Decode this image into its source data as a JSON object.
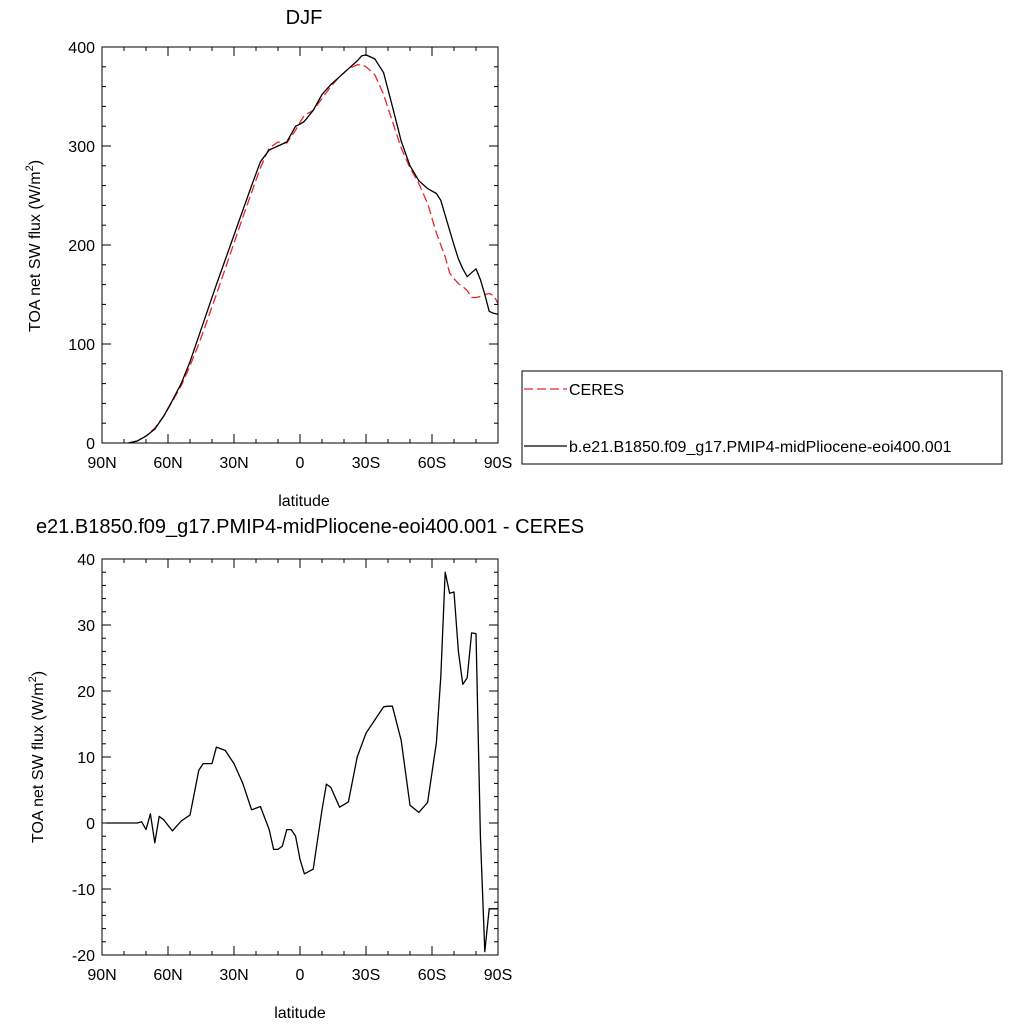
{
  "chart_data": [
    {
      "type": "line",
      "title": "DJF",
      "xlabel": "latitude",
      "ylabel": "TOA net SW flux (W/m",
      "ylabel_sup": "2",
      "ylabel_tail": ")",
      "xlim": [
        90,
        -90
      ],
      "ylim": [
        0,
        400
      ],
      "xticks": [
        {
          "v": 90,
          "label": "90N"
        },
        {
          "v": 60,
          "label": "60N"
        },
        {
          "v": 30,
          "label": "30N"
        },
        {
          "v": 0,
          "label": "0"
        },
        {
          "v": -30,
          "label": "30S"
        },
        {
          "v": -60,
          "label": "60S"
        },
        {
          "v": -90,
          "label": "90S"
        }
      ],
      "yticks": [
        0,
        100,
        200,
        300,
        400
      ],
      "grid": false,
      "legend_position": "right",
      "series": [
        {
          "name": "CERES",
          "color": "#e8262b",
          "dash": "dashed",
          "x": [
            78,
            74,
            70,
            66,
            62,
            58,
            54,
            50,
            46,
            42,
            38,
            34,
            30,
            26,
            22,
            18,
            14,
            10,
            6,
            2,
            0,
            -2,
            -6,
            -10,
            -14,
            -18,
            -22,
            -26,
            -28,
            -30,
            -34,
            -38,
            -42,
            -46,
            -50,
            -54,
            -58,
            -62,
            -66,
            -68,
            -70,
            -72,
            -74,
            -76,
            -78,
            -80,
            -82,
            -84,
            -86,
            -88,
            -90
          ],
          "y": [
            0,
            2,
            7,
            15,
            27,
            42,
            58,
            78,
            100,
            125,
            150,
            176,
            202,
            228,
            253,
            278,
            298,
            304,
            303,
            316,
            324,
            331,
            336,
            348,
            360,
            370,
            378,
            382,
            382,
            380,
            372,
            352,
            325,
            298,
            278,
            262,
            242,
            212,
            188,
            172,
            166,
            161,
            158,
            154,
            147,
            147,
            148,
            150,
            151,
            149,
            141
          ]
        },
        {
          "name": "b.e21.B1850.f09_g17.PMIP4-midPliocene-eoi400.001",
          "color": "#000000",
          "dash": "solid",
          "x": [
            78,
            74,
            70,
            66,
            62,
            58,
            54,
            50,
            46,
            42,
            38,
            34,
            30,
            26,
            22,
            18,
            14,
            10,
            6,
            2,
            0,
            -2,
            -6,
            -10,
            -14,
            -18,
            -22,
            -26,
            -28,
            -30,
            -34,
            -38,
            -42,
            -46,
            -50,
            -54,
            -58,
            -62,
            -64,
            -66,
            -68,
            -70,
            -72,
            -74,
            -76,
            -78,
            -80,
            -82,
            -84,
            -86,
            -88,
            -90
          ],
          "y": [
            0,
            2,
            7,
            14,
            27,
            43,
            60,
            82,
            108,
            134,
            160,
            185,
            210,
            235,
            260,
            284,
            296,
            300,
            304,
            320,
            322,
            325,
            336,
            352,
            362,
            370,
            378,
            386,
            391,
            392,
            388,
            374,
            340,
            305,
            280,
            265,
            257,
            252,
            245,
            230,
            215,
            200,
            186,
            176,
            168,
            172,
            176,
            165,
            150,
            133,
            131,
            130
          ]
        }
      ]
    },
    {
      "type": "line",
      "title": "e21.B1850.f09_g17.PMIP4-midPliocene-eoi400.001 - CERES",
      "xlabel": "latitude",
      "ylabel": "TOA net SW flux (W/m",
      "ylabel_sup": "2",
      "ylabel_tail": ")",
      "xlim": [
        90,
        -90
      ],
      "ylim": [
        -20,
        40
      ],
      "xticks": [
        {
          "v": 90,
          "label": "90N"
        },
        {
          "v": 60,
          "label": "60N"
        },
        {
          "v": 30,
          "label": "30N"
        },
        {
          "v": 0,
          "label": "0"
        },
        {
          "v": -30,
          "label": "30S"
        },
        {
          "v": -60,
          "label": "60S"
        },
        {
          "v": -90,
          "label": "90S"
        }
      ],
      "yticks": [
        -20,
        -10,
        0,
        10,
        20,
        30,
        40
      ],
      "grid": false,
      "series": [
        {
          "color": "#000000",
          "dash": "solid",
          "x": [
            88,
            84,
            80,
            76,
            74,
            72,
            70,
            68,
            66,
            64,
            62,
            58,
            54,
            50,
            46,
            44,
            42,
            40,
            38,
            34,
            32,
            30,
            26,
            22,
            18,
            14,
            12,
            10,
            8,
            6,
            4,
            2,
            0,
            -2,
            -6,
            -10,
            -12,
            -14,
            -18,
            -22,
            -26,
            -30,
            -34,
            -38,
            -40,
            -42,
            -46,
            -50,
            -54,
            -58,
            -62,
            -64,
            -66,
            -68,
            -70,
            -72,
            -74,
            -76,
            -78,
            -80,
            -82,
            -84,
            -86,
            -88,
            -90
          ],
          "y": [
            0,
            0,
            0,
            0,
            0,
            0.2,
            -1,
            1.4,
            -3,
            1,
            0.5,
            -1.2,
            0.3,
            1.2,
            8,
            9,
            9,
            9,
            11.5,
            11,
            10,
            9,
            6,
            2,
            2.5,
            -1,
            -4,
            -4,
            -3.5,
            -1,
            -1,
            -2,
            -5.5,
            -7.7,
            -7,
            2,
            5.9,
            5.4,
            2.4,
            3.2,
            10,
            13.6,
            15.6,
            17.6,
            17.7,
            17.7,
            12.5,
            2.7,
            1.6,
            3.1,
            12.2,
            22.2,
            38,
            34.8,
            35,
            26,
            21,
            22,
            28.8,
            28.7,
            -2,
            -19.5,
            -13,
            -13,
            -13
          ]
        }
      ]
    }
  ]
}
